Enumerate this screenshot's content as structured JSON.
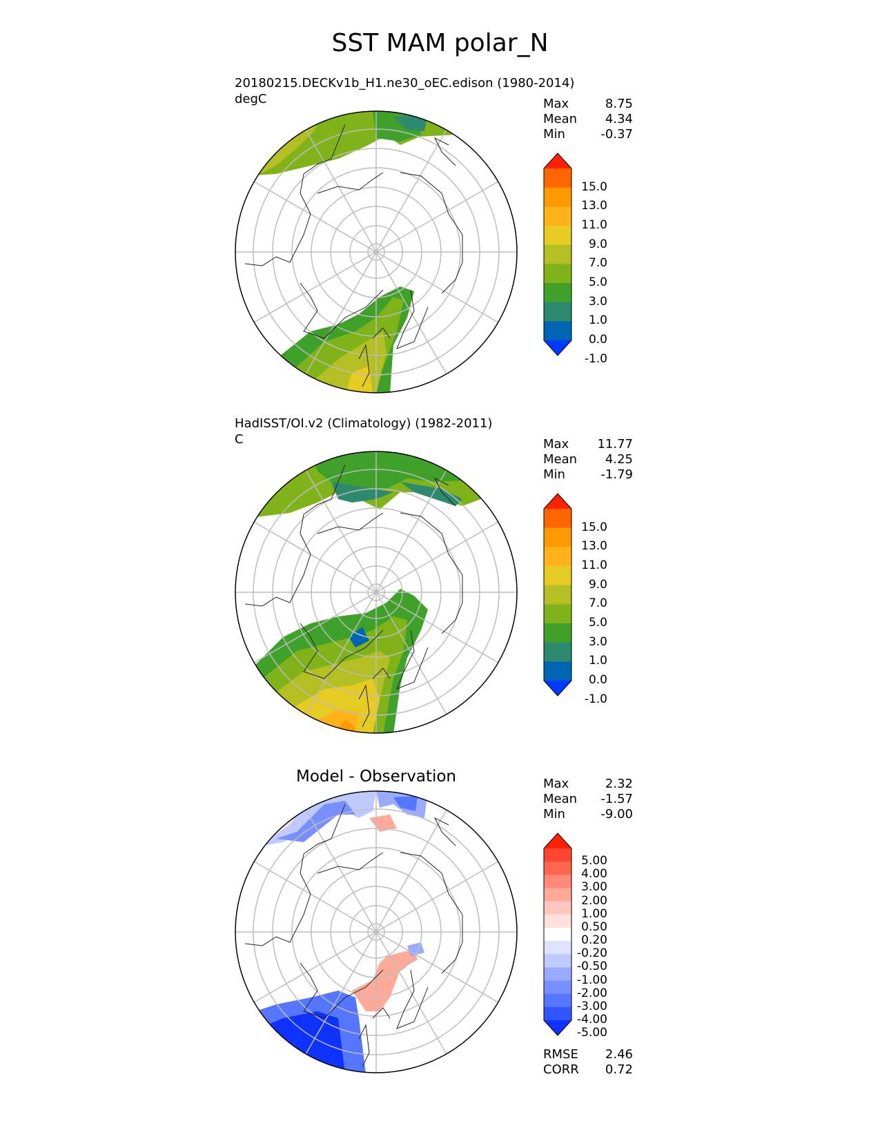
{
  "title": "SST MAM polar_N",
  "panels": [
    {
      "id": "test",
      "title_line1": "20180215.DECKv1b_H1.ne30_oEC.edison (1980-2014)",
      "units": "degC",
      "stats": [
        {
          "label": "Max",
          "value": "8.75"
        },
        {
          "label": "Mean",
          "value": "4.34"
        },
        {
          "label": "Min",
          "value": "-0.37"
        }
      ],
      "colorbar": {
        "labels": [
          "15.0",
          "13.0",
          "11.0",
          "9.0",
          "7.0",
          "5.0",
          "3.0",
          "1.0",
          "0.0",
          "-1.0"
        ],
        "colors": [
          "#ff2200",
          "#ff6600",
          "#ff9900",
          "#ffb319",
          "#e6cc22",
          "#b3bf22",
          "#80b31a",
          "#3fa02a",
          "#2e8a6e",
          "#0066b3",
          "#0039ff"
        ]
      }
    },
    {
      "id": "reference",
      "title_line1": "HadISST/OI.v2 (Climatology) (1982-2011)",
      "units": "C",
      "stats": [
        {
          "label": "Max",
          "value": "11.77"
        },
        {
          "label": "Mean",
          "value": "4.25"
        },
        {
          "label": "Min",
          "value": "-1.79"
        }
      ],
      "colorbar": {
        "labels": [
          "15.0",
          "13.0",
          "11.0",
          "9.0",
          "7.0",
          "5.0",
          "3.0",
          "1.0",
          "0.0",
          "-1.0"
        ],
        "colors": [
          "#ff2200",
          "#ff6600",
          "#ff9900",
          "#ffb319",
          "#e6cc22",
          "#b3bf22",
          "#80b31a",
          "#3fa02a",
          "#2e8a6e",
          "#0066b3",
          "#0039ff"
        ]
      }
    },
    {
      "id": "diff",
      "title_center": "Model - Observation",
      "stats": [
        {
          "label": "Max",
          "value": "2.32"
        },
        {
          "label": "Mean",
          "value": "-1.57"
        },
        {
          "label": "Min",
          "value": "-9.00"
        }
      ],
      "metrics": [
        {
          "label": "RMSE",
          "value": "2.46"
        },
        {
          "label": "CORR",
          "value": "0.72"
        }
      ],
      "colorbar": {
        "labels": [
          "5.00",
          "4.00",
          "3.00",
          "2.00",
          "1.00",
          "0.50",
          "0.20",
          "-0.20",
          "-0.50",
          "-1.00",
          "-2.00",
          "-3.00",
          "-4.00",
          "-5.00"
        ],
        "colors": [
          "#ff2200",
          "#ff4433",
          "#ff6650",
          "#ff8a78",
          "#ffaa99",
          "#ffc8bf",
          "#ffe0dc",
          "#ffffff",
          "#dde3ff",
          "#bfcaff",
          "#9aabff",
          "#7890ff",
          "#5577ff",
          "#3355ff",
          "#0f33ff"
        ]
      }
    }
  ]
}
